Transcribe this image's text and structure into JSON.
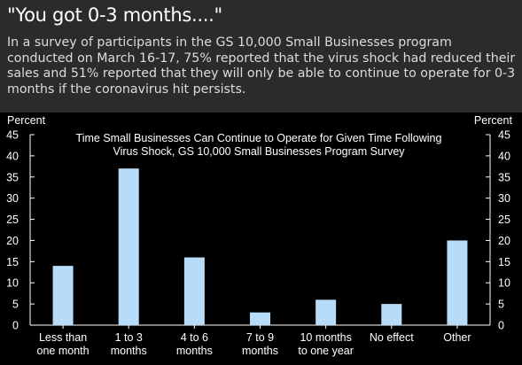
{
  "headline": "\"You got 0-3 months....\"",
  "summary": "In a survey of participants in the GS 10,000 Small Businesses program conducted on March 16-17, 75% reported that the virus shock had reduced their sales and 51% reported that they will only be able to continue to operate for 0-3 months if the coronavirus hit persists.",
  "colors": {
    "page_bg": "#2b2b2b",
    "chart_bg": "#000000",
    "bar": "#b7dcf9",
    "text": "#ffffff"
  },
  "chart_data": {
    "type": "bar",
    "title_lines": [
      "Time Small Businesses Can Continue to Operate for Given Time Following",
      "Virus Shock, GS 10,000 Small Businesses Program Survey"
    ],
    "ylabel_left": "Percent",
    "ylabel_right": "Percent",
    "ylim": [
      0,
      45
    ],
    "yticks": [
      0,
      5,
      10,
      15,
      20,
      25,
      30,
      35,
      40,
      45
    ],
    "categories": [
      [
        "Less than",
        "one month"
      ],
      [
        "1 to 3",
        "months"
      ],
      [
        "4 to 6",
        "months"
      ],
      [
        "7 to 9",
        "months"
      ],
      [
        "10 months",
        "to one year"
      ],
      [
        "No effect"
      ],
      [
        "Other"
      ]
    ],
    "values": [
      14,
      37,
      16,
      3,
      6,
      5,
      20
    ],
    "grid": false,
    "legend": "none"
  }
}
